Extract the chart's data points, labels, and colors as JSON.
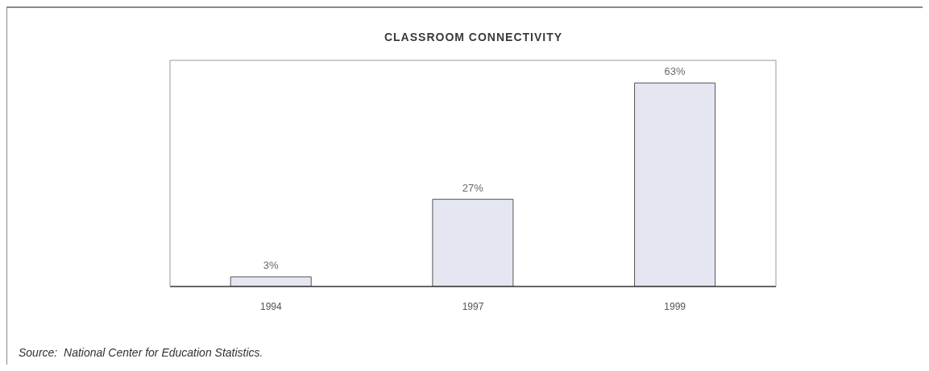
{
  "chart_data": {
    "type": "bar",
    "title": "CLASSROOM CONNECTIVITY",
    "categories": [
      "1994",
      "1997",
      "1999"
    ],
    "values": [
      3,
      27,
      63
    ],
    "value_labels": [
      "3%",
      "27%",
      "63%"
    ],
    "color": "#e4e6f2",
    "ylim": [
      0,
      70
    ],
    "tick_labels": "x",
    "annotations": [
      "Source:  National Center for Education Statistics."
    ]
  }
}
